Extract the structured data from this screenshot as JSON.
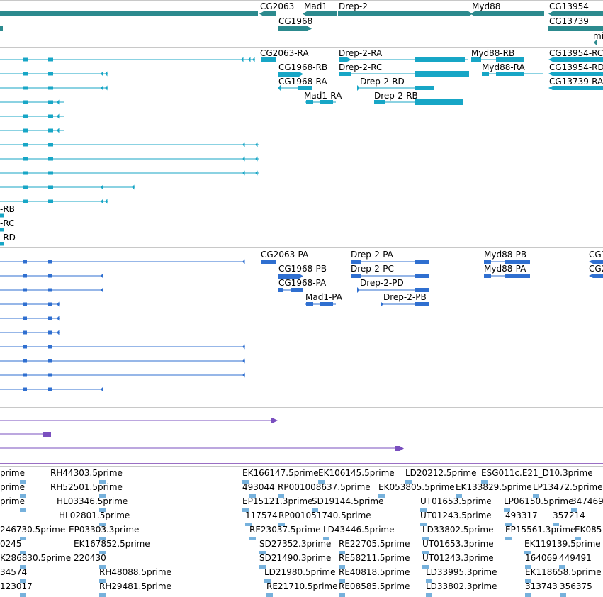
{
  "colors": {
    "gene": "#2c8a8e",
    "mrna": "#17a6c6",
    "protein": "#2f6fd0",
    "purple": "#7a4fbf",
    "est": "#76b1dc",
    "divider": "#c8c8c8"
  },
  "tracks": {
    "genes": {
      "labels": [
        "CG2063",
        "Mad1",
        "Drep-2",
        "Myd88",
        "CG13954",
        "CG1968",
        "CG13739",
        "mi"
      ],
      "feature_names": [
        "left-gene-bar",
        "cg2063-gene",
        "mad1-gene",
        "drep2-gene",
        "myd88-gene",
        "cg13954-gene",
        "cg1968-gene",
        "cg13739-gene",
        "mi-gene",
        "small-left-gene"
      ]
    },
    "transcripts": {
      "labels": [
        "CG2063-RA",
        "Drep-2-RA",
        "Myd88-RB",
        "CG13954-RC",
        "CG1968-RB",
        "Drep-2-RC",
        "Myd88-RA",
        "CG13954-RD",
        "CG1968-RA",
        "Drep-2-RD",
        "CG13739-RA",
        "Mad1-RA",
        "Drep-2-RB",
        "-RB",
        "-RC",
        "-RD"
      ],
      "lines": [
        "row-1",
        "row-2",
        "row-3",
        "row-4",
        "row-5",
        "row-6",
        "row-7",
        "row-8",
        "row-9",
        "row-10",
        "row-11",
        "row-12",
        "row-13",
        "row-14"
      ]
    },
    "proteins": {
      "labels": [
        "CG2063-PA",
        "Drep-2-PA",
        "Myd88-PB",
        "CG1",
        "CG1968-PB",
        "Drep-2-PC",
        "Myd88-PA",
        "CG2",
        "CG1968-PA",
        "Drep-2-PD",
        "Mad1-PA",
        "Drep-2-PB"
      ],
      "lines": [
        "row-1",
        "row-2",
        "row-3",
        "row-4",
        "row-5",
        "row-6",
        "row-7",
        "row-8",
        "row-9",
        "row-10"
      ]
    },
    "purple": {
      "lines": [
        "row-1",
        "row-2",
        "row-3"
      ]
    },
    "ests": {
      "labels": [
        "prime",
        "RH44303.5prime",
        "EK166147.5prime",
        "EK106145.5prime",
        "LD20212.5prime",
        "ESG011c.E21_D10.3prime",
        "prime",
        "RH52501.5prime",
        "493044",
        "RP001008637.5prime",
        "EK053805.5prime",
        "EK133829.5prime",
        "LP13472.5prime",
        "prime",
        "HL03346.5prime",
        "EP15121.3prime",
        "SD19144.5prime",
        "UT01653.5prime",
        "LP06150.5prime",
        "347469",
        "HL02801.5prime",
        "117574",
        "RP001051740.5prime",
        "UT01243.5prime",
        "493317",
        "357214",
        "246730.5prime",
        "EP03303.3prime",
        "RE23037.5prime",
        "LD43446.5prime",
        "LD33802.5prime",
        "EP15561.3prime",
        "EK085",
        "0245",
        "EK167852.5prime",
        "SD27352.3prime",
        "RE22705.5prime",
        "UT01653.3prime",
        "EK119139.5prime",
        "K286830.5prime",
        "220430",
        "SD21490.3prime",
        "RE58211.5prime",
        "UT01243.3prime",
        "164069",
        "449491",
        "34574",
        "RH48088.5prime",
        "LD21980.5prime",
        "RE40818.5prime",
        "LD33995.3prime",
        "EK118658.5prime",
        "123017",
        "RH29481.5prime",
        "RE21710.5prime",
        "RE08585.5prime",
        "LD33802.3prime",
        "313743",
        "356375"
      ]
    }
  }
}
